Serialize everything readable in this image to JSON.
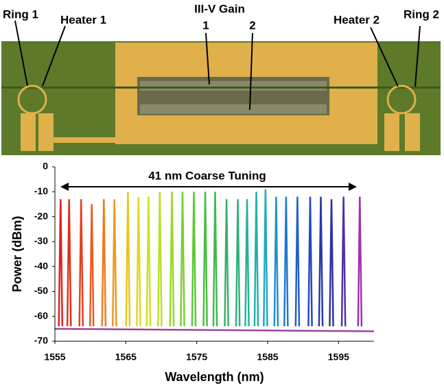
{
  "micrograph": {
    "labels": [
      "Ring 1",
      "Heater 1",
      "III-V Gain",
      "1",
      "2",
      "Heater 2",
      "Ring 2"
    ]
  },
  "chart_data": {
    "type": "line",
    "annotation": "41 nm Coarse Tuning",
    "xlabel": "Wavelength (nm)",
    "ylabel": "Power (dBm)",
    "xlim": [
      1555,
      1600
    ],
    "xticks": [
      1555,
      1565,
      1575,
      1585,
      1595
    ],
    "ylim": [
      -70,
      0
    ],
    "yticks": [
      0,
      -10,
      -20,
      -30,
      -40,
      -50,
      -60,
      -70
    ],
    "series": [
      {
        "color": "#e0201c",
        "x": [
          1555.55,
          1555.8,
          1556.05
        ],
        "values": [
          -64,
          -13,
          -64
        ]
      },
      {
        "color": "#e0301c",
        "x": [
          1556.75,
          1557.0,
          1557.25
        ],
        "values": [
          -64,
          -13,
          -64
        ]
      },
      {
        "color": "#e8401c",
        "x": [
          1558.45,
          1558.7,
          1558.95
        ],
        "values": [
          -64,
          -13,
          -64
        ]
      },
      {
        "color": "#ee5a1c",
        "x": [
          1559.95,
          1560.2,
          1560.45
        ],
        "values": [
          -64,
          -15,
          -64
        ]
      },
      {
        "color": "#f07a1c",
        "x": [
          1561.65,
          1561.9,
          1562.15
        ],
        "values": [
          -64,
          -13,
          -64
        ]
      },
      {
        "color": "#f0981c",
        "x": [
          1563.15,
          1563.4,
          1563.65
        ],
        "values": [
          -64,
          -13,
          -64
        ]
      },
      {
        "color": "#e8c41c",
        "x": [
          1565.05,
          1565.3,
          1565.55
        ],
        "values": [
          -64,
          -10,
          -64
        ]
      },
      {
        "color": "#e0d81c",
        "x": [
          1566.55,
          1566.8,
          1567.05
        ],
        "values": [
          -64,
          -12,
          -64
        ]
      },
      {
        "color": "#d0e020",
        "x": [
          1567.95,
          1568.2,
          1568.45
        ],
        "values": [
          -64,
          -12,
          -64
        ]
      },
      {
        "color": "#b8e024",
        "x": [
          1569.55,
          1569.8,
          1570.05
        ],
        "values": [
          -64,
          -10,
          -64
        ]
      },
      {
        "color": "#98d828",
        "x": [
          1571.25,
          1571.5,
          1571.75
        ],
        "values": [
          -64,
          -10,
          -64
        ]
      },
      {
        "color": "#78d02c",
        "x": [
          1572.75,
          1573.0,
          1573.25
        ],
        "values": [
          -64,
          -10,
          -64
        ]
      },
      {
        "color": "#5cc834",
        "x": [
          1574.35,
          1574.6,
          1574.85
        ],
        "values": [
          -64,
          -10,
          -64
        ]
      },
      {
        "color": "#48c040",
        "x": [
          1575.95,
          1576.2,
          1576.45
        ],
        "values": [
          -64,
          -10,
          -64
        ]
      },
      {
        "color": "#40b850",
        "x": [
          1577.35,
          1577.6,
          1577.85
        ],
        "values": [
          -64,
          -10,
          -64
        ]
      },
      {
        "color": "#38b068",
        "x": [
          1578.95,
          1579.2,
          1579.45
        ],
        "values": [
          -64,
          -13,
          -64
        ]
      },
      {
        "color": "#30b080",
        "x": [
          1580.55,
          1580.8,
          1581.05
        ],
        "values": [
          -64,
          -13,
          -64
        ]
      },
      {
        "color": "#28b098",
        "x": [
          1581.85,
          1582.1,
          1582.35
        ],
        "values": [
          -64,
          -13,
          -64
        ]
      },
      {
        "color": "#20b0b0",
        "x": [
          1583.15,
          1583.4,
          1583.65
        ],
        "values": [
          -64,
          -10,
          -64
        ]
      },
      {
        "color": "#20a8c8",
        "x": [
          1584.45,
          1584.7,
          1584.95
        ],
        "values": [
          -64,
          -9,
          -64
        ]
      },
      {
        "color": "#2090d0",
        "x": [
          1585.95,
          1586.2,
          1586.45
        ],
        "values": [
          -64,
          -12,
          -64
        ]
      },
      {
        "color": "#2078d0",
        "x": [
          1587.35,
          1587.6,
          1587.85
        ],
        "values": [
          -64,
          -12,
          -64
        ]
      },
      {
        "color": "#2060c8",
        "x": [
          1588.95,
          1589.2,
          1589.45
        ],
        "values": [
          -64,
          -12,
          -64
        ]
      },
      {
        "color": "#2448c0",
        "x": [
          1590.75,
          1591.0,
          1591.25
        ],
        "values": [
          -64,
          -12,
          -64
        ]
      },
      {
        "color": "#2838b0",
        "x": [
          1592.25,
          1592.5,
          1592.75
        ],
        "values": [
          -64,
          -12,
          -64
        ]
      },
      {
        "color": "#3030a8",
        "x": [
          1593.75,
          1594.0,
          1594.25
        ],
        "values": [
          -64,
          -13,
          -64
        ]
      },
      {
        "color": "#5030a8",
        "x": [
          1595.45,
          1595.7,
          1595.95
        ],
        "values": [
          -64,
          -12,
          -64
        ]
      },
      {
        "color": "#a030b0",
        "x": [
          1597.75,
          1598.0,
          1598.25
        ],
        "values": [
          -64,
          -12,
          -64
        ]
      },
      {
        "color": "#a040a0",
        "x": [
          1555,
          1600
        ],
        "values": [
          -65,
          -66
        ]
      }
    ]
  }
}
